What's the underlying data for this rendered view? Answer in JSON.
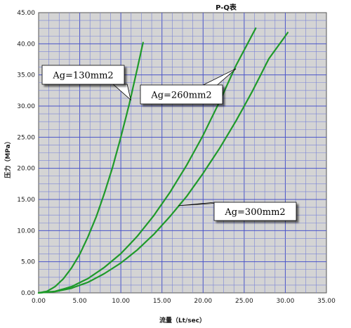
{
  "chart_data": {
    "type": "line",
    "title": "P-Q表",
    "xlabel": "流量（Lt/sec）",
    "ylabel": "压力（MPa）",
    "xlim": [
      0,
      35
    ],
    "ylim": [
      0,
      45
    ],
    "x_ticks": [
      "0.00",
      "5.00",
      "10.00",
      "15.00",
      "20.00",
      "25.00",
      "30.00",
      "35.00"
    ],
    "y_ticks": [
      "0.00",
      "5.00",
      "10.00",
      "15.00",
      "20.00",
      "25.00",
      "30.00",
      "35.00",
      "40.00",
      "45.00"
    ],
    "grid": true,
    "series": [
      {
        "name": "Ag=130mm2",
        "color": "#1f9a2a",
        "x": [
          0,
          1,
          2,
          3,
          4,
          5,
          6,
          7,
          8,
          9,
          10,
          11,
          12,
          12.7
        ],
        "y": [
          0,
          0.25,
          1.0,
          2.25,
          4.0,
          6.2,
          9.0,
          12.2,
          16.0,
          20.2,
          25.0,
          30.2,
          36.0,
          40.2
        ]
      },
      {
        "name": "Ag=260mm2",
        "color": "#1f9a2a",
        "x": [
          0,
          2,
          4,
          6,
          8,
          10,
          12,
          14,
          16,
          18,
          20,
          22,
          24,
          26.4
        ],
        "y": [
          0,
          0.25,
          1.0,
          2.3,
          4.1,
          6.3,
          9.1,
          12.4,
          16.2,
          20.5,
          25.3,
          30.7,
          36.5,
          42.5
        ]
      },
      {
        "name": "Ag=300mm2",
        "color": "#1f9a2a",
        "x": [
          0,
          2,
          4,
          6,
          8,
          10,
          12,
          14,
          16,
          18,
          20,
          22,
          24,
          26,
          28,
          30.3
        ],
        "y": [
          0,
          0.2,
          0.75,
          1.7,
          3.1,
          4.8,
          6.9,
          9.4,
          12.3,
          15.5,
          19.2,
          23.2,
          27.6,
          32.4,
          37.6,
          41.8
        ]
      }
    ],
    "annotations": [
      {
        "text": "Ag=130mm2",
        "target_series": 0,
        "target": [
          11.2,
          31.0
        ]
      },
      {
        "text": "Ag=260mm2",
        "target_series": 1,
        "target": [
          24.0,
          36.0
        ]
      },
      {
        "text": "Ag=300mm2",
        "target_series": 2,
        "target": [
          17.0,
          14.0
        ]
      }
    ]
  }
}
